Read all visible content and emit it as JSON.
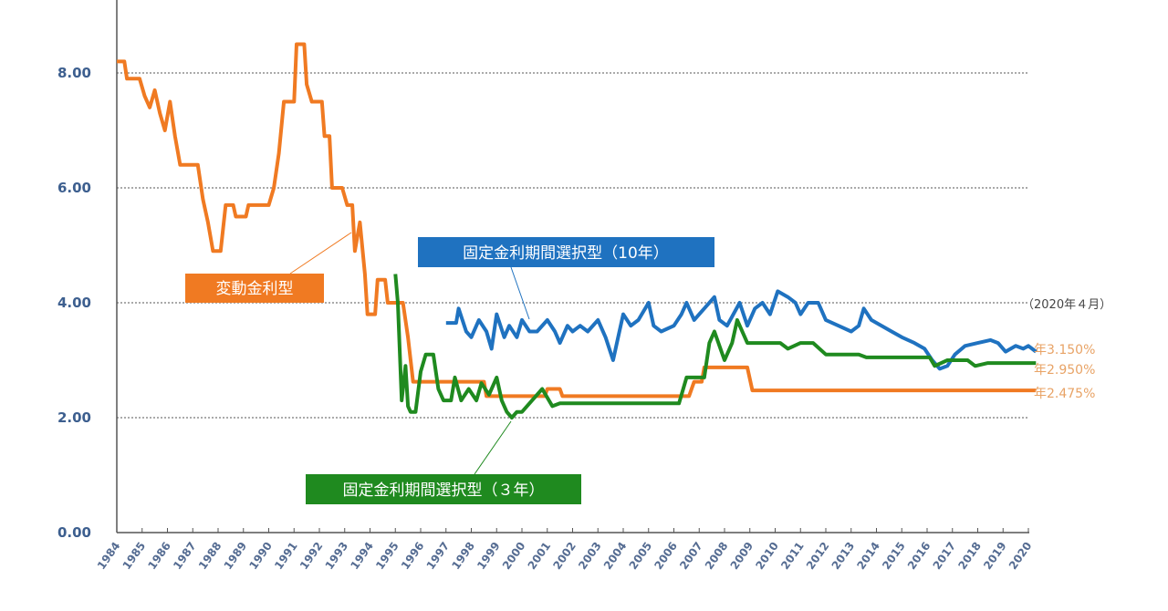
{
  "chart_data": {
    "type": "line",
    "title": "",
    "xlabel": "",
    "ylabel": "",
    "xlim": [
      1984,
      2020
    ],
    "ylim": [
      0,
      8.5
    ],
    "yticks": [
      "0.00",
      "2.00",
      "4.00",
      "6.00",
      "8.00"
    ],
    "ytick_values": [
      0,
      2,
      4,
      6,
      8
    ],
    "xticks": [
      "1984",
      "1985",
      "1986",
      "1987",
      "1988",
      "1989",
      "1990",
      "1991",
      "1992",
      "1993",
      "1994",
      "1995",
      "1996",
      "1997",
      "1998",
      "1999",
      "2000",
      "2001",
      "2002",
      "2003",
      "2004",
      "2005",
      "2006",
      "2007",
      "2008",
      "2009",
      "2010",
      "2011",
      "2012",
      "2013",
      "2014",
      "2015",
      "2016",
      "2017",
      "2018",
      "2019",
      "2020"
    ],
    "grid": "horizontal dotted",
    "date_note": "（2020年４月）",
    "colors": {
      "variable": "#f07a22",
      "fixed10": "#1f72c0",
      "fixed3": "#1f8a1f",
      "axis": "#3d5f8f"
    },
    "series": [
      {
        "name": "変動金利型",
        "key": "variable",
        "end_label": "年2.475%",
        "points": [
          [
            1984,
            8.2
          ],
          [
            1984.3,
            8.2
          ],
          [
            1984.4,
            7.9
          ],
          [
            1984.9,
            7.9
          ],
          [
            1985.1,
            7.6
          ],
          [
            1985.3,
            7.4
          ],
          [
            1985.5,
            7.7
          ],
          [
            1985.7,
            7.3
          ],
          [
            1985.9,
            7.0
          ],
          [
            1986.1,
            7.5
          ],
          [
            1986.3,
            6.9
          ],
          [
            1986.5,
            6.4
          ],
          [
            1987.2,
            6.4
          ],
          [
            1987.4,
            5.8
          ],
          [
            1987.6,
            5.4
          ],
          [
            1987.8,
            4.9
          ],
          [
            1988.1,
            4.9
          ],
          [
            1988.3,
            5.7
          ],
          [
            1988.6,
            5.7
          ],
          [
            1988.7,
            5.5
          ],
          [
            1989.1,
            5.5
          ],
          [
            1989.2,
            5.7
          ],
          [
            1990.0,
            5.7
          ],
          [
            1990.2,
            6.0
          ],
          [
            1990.4,
            6.6
          ],
          [
            1990.6,
            7.5
          ],
          [
            1991.0,
            7.5
          ],
          [
            1991.1,
            8.5
          ],
          [
            1991.4,
            8.5
          ],
          [
            1991.5,
            7.8
          ],
          [
            1991.7,
            7.5
          ],
          [
            1992.1,
            7.5
          ],
          [
            1992.2,
            6.9
          ],
          [
            1992.4,
            6.9
          ],
          [
            1992.5,
            6.0
          ],
          [
            1992.9,
            6.0
          ],
          [
            1993.1,
            5.7
          ],
          [
            1993.3,
            5.7
          ],
          [
            1993.4,
            4.9
          ],
          [
            1993.6,
            5.4
          ],
          [
            1993.8,
            4.5
          ],
          [
            1993.9,
            3.8
          ],
          [
            1994.2,
            3.8
          ],
          [
            1994.3,
            4.4
          ],
          [
            1994.6,
            4.4
          ],
          [
            1994.7,
            4.0
          ],
          [
            1995.3,
            4.0
          ],
          [
            1995.5,
            3.4
          ],
          [
            1995.7,
            2.625
          ],
          [
            1998.5,
            2.625
          ],
          [
            1998.6,
            2.375
          ],
          [
            2000.9,
            2.375
          ],
          [
            2001.0,
            2.5
          ],
          [
            2001.5,
            2.5
          ],
          [
            2001.6,
            2.375
          ],
          [
            2006.6,
            2.375
          ],
          [
            2006.8,
            2.625
          ],
          [
            2007.1,
            2.625
          ],
          [
            2007.2,
            2.875
          ],
          [
            2008.9,
            2.875
          ],
          [
            2009.1,
            2.475
          ],
          [
            2020.3,
            2.475
          ]
        ]
      },
      {
        "name": "固定金利期間選択型（10年）",
        "key": "fixed10",
        "end_label": "年3.150%",
        "points": [
          [
            1997.0,
            3.65
          ],
          [
            1997.4,
            3.65
          ],
          [
            1997.5,
            3.9
          ],
          [
            1997.8,
            3.5
          ],
          [
            1998.0,
            3.4
          ],
          [
            1998.3,
            3.7
          ],
          [
            1998.6,
            3.5
          ],
          [
            1998.8,
            3.2
          ],
          [
            1999.0,
            3.8
          ],
          [
            1999.3,
            3.4
          ],
          [
            1999.5,
            3.6
          ],
          [
            1999.8,
            3.4
          ],
          [
            2000.0,
            3.7
          ],
          [
            2000.3,
            3.5
          ],
          [
            2000.6,
            3.5
          ],
          [
            2001.0,
            3.7
          ],
          [
            2001.3,
            3.5
          ],
          [
            2001.5,
            3.3
          ],
          [
            2001.8,
            3.6
          ],
          [
            2002.0,
            3.5
          ],
          [
            2002.3,
            3.6
          ],
          [
            2002.6,
            3.5
          ],
          [
            2003.0,
            3.7
          ],
          [
            2003.3,
            3.4
          ],
          [
            2003.6,
            3.0
          ],
          [
            2003.8,
            3.4
          ],
          [
            2004.0,
            3.8
          ],
          [
            2004.3,
            3.6
          ],
          [
            2004.6,
            3.7
          ],
          [
            2005.0,
            4.0
          ],
          [
            2005.2,
            3.6
          ],
          [
            2005.5,
            3.5
          ],
          [
            2006.0,
            3.6
          ],
          [
            2006.3,
            3.8
          ],
          [
            2006.5,
            4.0
          ],
          [
            2006.8,
            3.7
          ],
          [
            2007.2,
            3.9
          ],
          [
            2007.6,
            4.1
          ],
          [
            2007.8,
            3.7
          ],
          [
            2008.1,
            3.6
          ],
          [
            2008.6,
            4.0
          ],
          [
            2008.9,
            3.6
          ],
          [
            2009.2,
            3.9
          ],
          [
            2009.5,
            4.0
          ],
          [
            2009.8,
            3.8
          ],
          [
            2010.1,
            4.2
          ],
          [
            2010.5,
            4.1
          ],
          [
            2010.8,
            4.0
          ],
          [
            2011.0,
            3.8
          ],
          [
            2011.3,
            4.0
          ],
          [
            2011.7,
            4.0
          ],
          [
            2012.0,
            3.7
          ],
          [
            2012.5,
            3.6
          ],
          [
            2013.0,
            3.5
          ],
          [
            2013.3,
            3.6
          ],
          [
            2013.5,
            3.9
          ],
          [
            2013.8,
            3.7
          ],
          [
            2014.2,
            3.6
          ],
          [
            2014.6,
            3.5
          ],
          [
            2015.0,
            3.4
          ],
          [
            2015.5,
            3.3
          ],
          [
            2015.9,
            3.2
          ],
          [
            2016.2,
            3.0
          ],
          [
            2016.5,
            2.85
          ],
          [
            2016.8,
            2.9
          ],
          [
            2017.1,
            3.1
          ],
          [
            2017.5,
            3.25
          ],
          [
            2018.0,
            3.3
          ],
          [
            2018.5,
            3.35
          ],
          [
            2018.8,
            3.3
          ],
          [
            2019.1,
            3.15
          ],
          [
            2019.5,
            3.25
          ],
          [
            2019.8,
            3.2
          ],
          [
            2020.0,
            3.25
          ],
          [
            2020.3,
            3.15
          ]
        ]
      },
      {
        "name": "固定金利期間選択型（３年）",
        "key": "fixed3",
        "end_label": "年2.950%",
        "points": [
          [
            1995.0,
            4.5
          ],
          [
            1995.1,
            4.0
          ],
          [
            1995.25,
            2.3
          ],
          [
            1995.4,
            2.9
          ],
          [
            1995.5,
            2.2
          ],
          [
            1995.6,
            2.1
          ],
          [
            1995.8,
            2.1
          ],
          [
            1996.0,
            2.8
          ],
          [
            1996.2,
            3.1
          ],
          [
            1996.5,
            3.1
          ],
          [
            1996.7,
            2.5
          ],
          [
            1996.9,
            2.3
          ],
          [
            1997.2,
            2.3
          ],
          [
            1997.35,
            2.7
          ],
          [
            1997.6,
            2.3
          ],
          [
            1997.9,
            2.5
          ],
          [
            1998.2,
            2.3
          ],
          [
            1998.4,
            2.6
          ],
          [
            1998.7,
            2.4
          ],
          [
            1999.0,
            2.7
          ],
          [
            1999.2,
            2.3
          ],
          [
            1999.4,
            2.1
          ],
          [
            1999.6,
            2.0
          ],
          [
            1999.8,
            2.1
          ],
          [
            2000.0,
            2.1
          ],
          [
            2000.4,
            2.3
          ],
          [
            2000.8,
            2.5
          ],
          [
            2001.2,
            2.2
          ],
          [
            2001.5,
            2.25
          ],
          [
            2006.2,
            2.25
          ],
          [
            2006.5,
            2.7
          ],
          [
            2007.2,
            2.7
          ],
          [
            2007.4,
            3.3
          ],
          [
            2007.6,
            3.5
          ],
          [
            2008.0,
            3.0
          ],
          [
            2008.3,
            3.3
          ],
          [
            2008.5,
            3.7
          ],
          [
            2008.9,
            3.3
          ],
          [
            2010.2,
            3.3
          ],
          [
            2010.5,
            3.2
          ],
          [
            2011.0,
            3.3
          ],
          [
            2011.5,
            3.3
          ],
          [
            2012.0,
            3.1
          ],
          [
            2013.3,
            3.1
          ],
          [
            2013.6,
            3.05
          ],
          [
            2016.1,
            3.05
          ],
          [
            2016.3,
            2.9
          ],
          [
            2016.8,
            3.0
          ],
          [
            2017.6,
            3.0
          ],
          [
            2017.9,
            2.9
          ],
          [
            2018.4,
            2.95
          ],
          [
            2020.3,
            2.95
          ]
        ]
      }
    ]
  }
}
